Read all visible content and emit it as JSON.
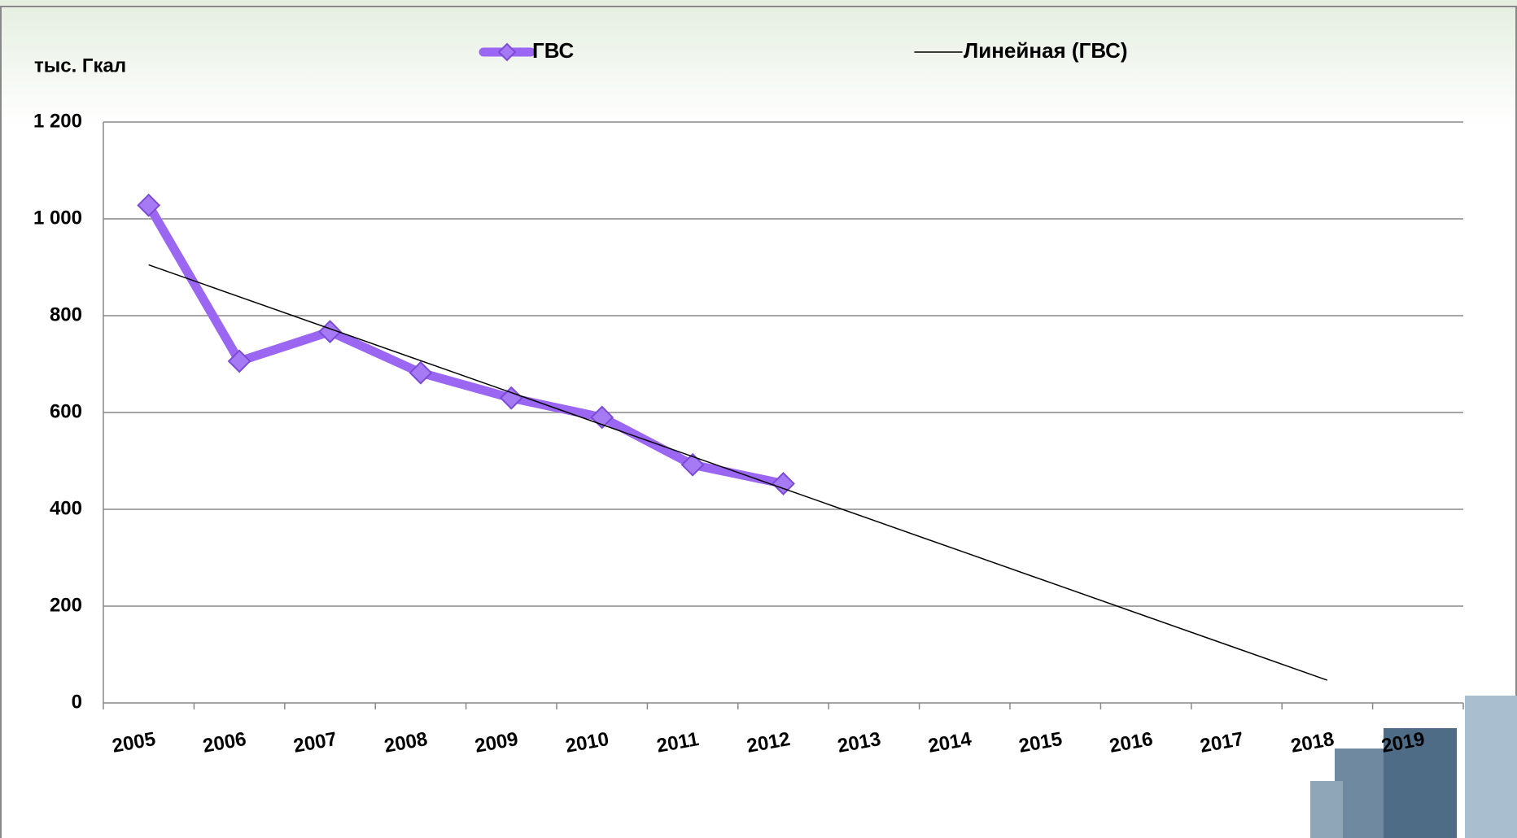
{
  "chart_data": {
    "type": "line",
    "y_label": "тыс. Гкал",
    "categories": [
      "2005",
      "2006",
      "2007",
      "2008",
      "2009",
      "2010",
      "2011",
      "2012",
      "2013",
      "2014",
      "2015",
      "2016",
      "2017",
      "2018",
      "2019"
    ],
    "series": [
      {
        "name": "ГВС",
        "color": "#9b66f2",
        "marker": "diamond",
        "values": [
          1028,
          706,
          767,
          682,
          630,
          590,
          492,
          453,
          null,
          null,
          null,
          null,
          null,
          null,
          null
        ]
      },
      {
        "name": "Линейная (ГВС)",
        "color": "#000000",
        "marker": "none",
        "values": [
          905,
          839,
          773,
          707,
          641,
          575,
          509,
          443,
          377,
          311,
          245,
          179,
          113,
          47,
          null
        ]
      }
    ],
    "ylim": [
      0,
      1200
    ],
    "yticks": [
      0,
      200,
      400,
      600,
      800,
      {
        "value": 1000,
        "label": "1 000"
      },
      {
        "value": 1200,
        "label": "1 200"
      }
    ],
    "grid": true
  }
}
